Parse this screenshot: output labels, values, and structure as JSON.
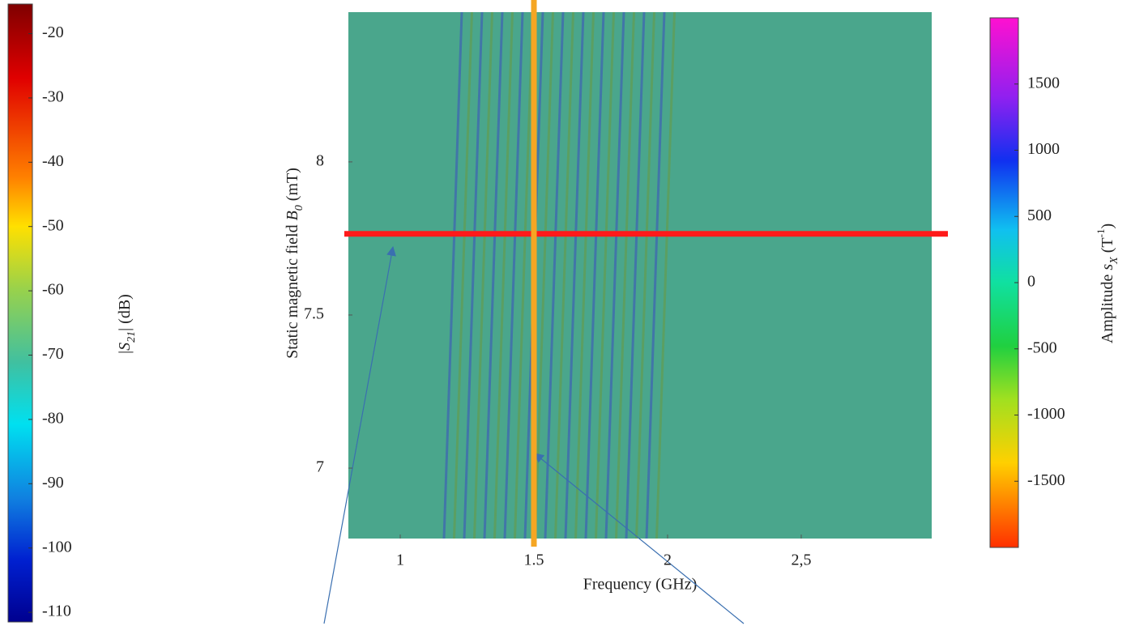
{
  "chart_data": {
    "type": "heatmap",
    "xlabel": "Frequency (GHz)",
    "ylabel": [
      "Static magnetic field ",
      "B",
      "0",
      " (mT)"
    ],
    "xlim": [
      0.806,
      2.988
    ],
    "ylim": [
      6.77,
      8.489
    ],
    "xticks": [
      1,
      1.5,
      2,
      {
        "value": 2.5,
        "label": "2,5"
      }
    ],
    "yticks": [
      7,
      7.5,
      8
    ],
    "lines": [
      {
        "orientation": "horizontal",
        "value": 7.765,
        "color": "#ff1a1a"
      },
      {
        "orientation": "vertical",
        "value": 1.5,
        "color": "#f5a623"
      }
    ],
    "colorbars": [
      {
        "label": [
          "|",
          "S",
          "21",
          "| (dB)"
        ],
        "lim": [
          -111.5,
          -15.4
        ],
        "ticks": [
          -110,
          -100,
          -90,
          -80,
          -70,
          -60,
          -50,
          -40,
          -30,
          -20
        ]
      },
      {
        "label": [
          "Amplitude ",
          "s",
          "X",
          " (T",
          "-1",
          ")"
        ],
        "lim": [
          -2000,
          2000
        ],
        "ticks": [
          -1500,
          -1000,
          -500,
          0,
          500,
          1000,
          1500
        ]
      }
    ]
  }
}
